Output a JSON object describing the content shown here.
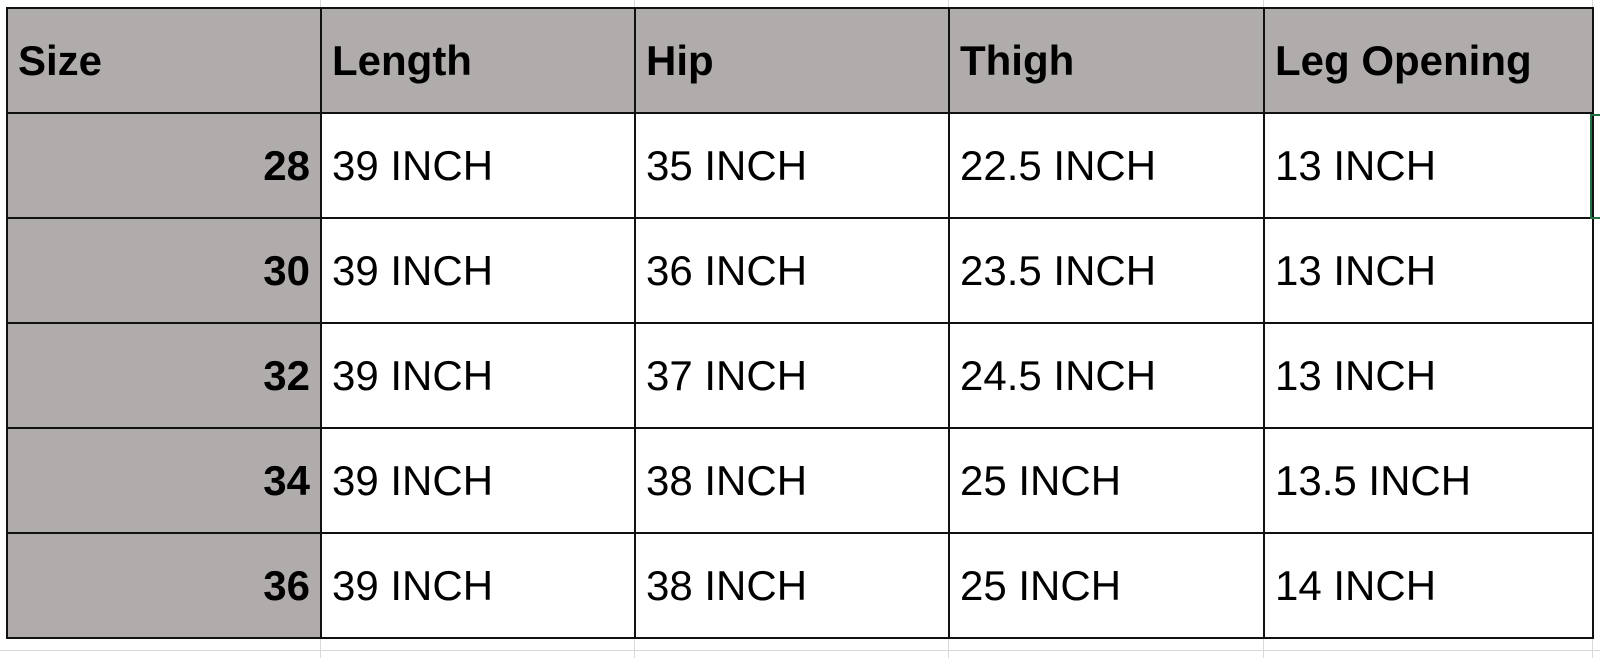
{
  "table": {
    "headers": [
      "Size",
      "Length",
      "Hip",
      "Thigh",
      "Leg Opening"
    ],
    "rows": [
      [
        "28",
        "39 INCH",
        "35 INCH",
        "22.5 INCH",
        "13 INCH"
      ],
      [
        "30",
        "39 INCH",
        "36 INCH",
        "23.5 INCH",
        "13 INCH"
      ],
      [
        "32",
        "39 INCH",
        "37 INCH",
        "24.5 INCH",
        "13 INCH"
      ],
      [
        "34",
        "39 INCH",
        "38 INCH",
        "25 INCH",
        "13.5 INCH"
      ],
      [
        "36",
        "39 INCH",
        "38 INCH",
        "25 INCH",
        "14 INCH"
      ]
    ]
  },
  "colors": {
    "header_fill": "#b0acab",
    "selection_border": "#217346"
  }
}
